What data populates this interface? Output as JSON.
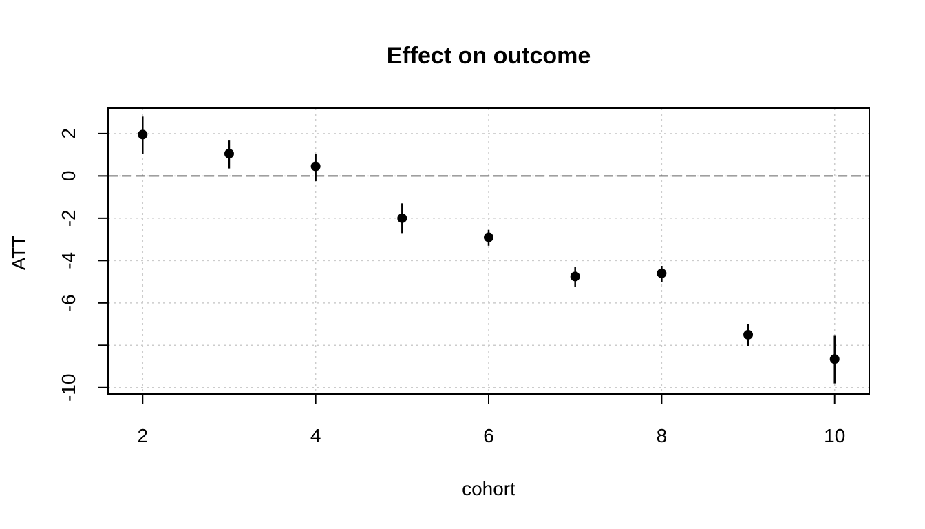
{
  "chart_data": {
    "type": "scatter",
    "title": "Effect on outcome",
    "xlabel": "cohort",
    "ylabel": "ATT",
    "xlim": [
      1.6,
      10.4
    ],
    "ylim": [
      -10.3,
      3.2
    ],
    "xticks": [
      2,
      4,
      6,
      8,
      10
    ],
    "xtick_labels": [
      "2",
      "4",
      "6",
      "8",
      "10"
    ],
    "yticks": [
      2,
      0,
      -2,
      -4,
      -6,
      -8,
      -10
    ],
    "ytick_labels": [
      "2",
      "0",
      "-2",
      "-4",
      "-6",
      "",
      "-10"
    ],
    "grid": true,
    "reference_line_y": 0,
    "points": [
      {
        "x": 2,
        "y": 1.95,
        "lo": 1.05,
        "hi": 2.8
      },
      {
        "x": 3,
        "y": 1.05,
        "lo": 0.35,
        "hi": 1.7
      },
      {
        "x": 4,
        "y": 0.45,
        "lo": -0.25,
        "hi": 1.05
      },
      {
        "x": 5,
        "y": -2.0,
        "lo": -2.7,
        "hi": -1.3
      },
      {
        "x": 6,
        "y": -2.9,
        "lo": -3.3,
        "hi": -2.55
      },
      {
        "x": 7,
        "y": -4.75,
        "lo": -5.25,
        "hi": -4.3
      },
      {
        "x": 8,
        "y": -4.6,
        "lo": -5.0,
        "hi": -4.25
      },
      {
        "x": 9,
        "y": -7.5,
        "lo": -8.05,
        "hi": -7.0
      },
      {
        "x": 10,
        "y": -8.65,
        "lo": -9.8,
        "hi": -7.55
      }
    ]
  }
}
